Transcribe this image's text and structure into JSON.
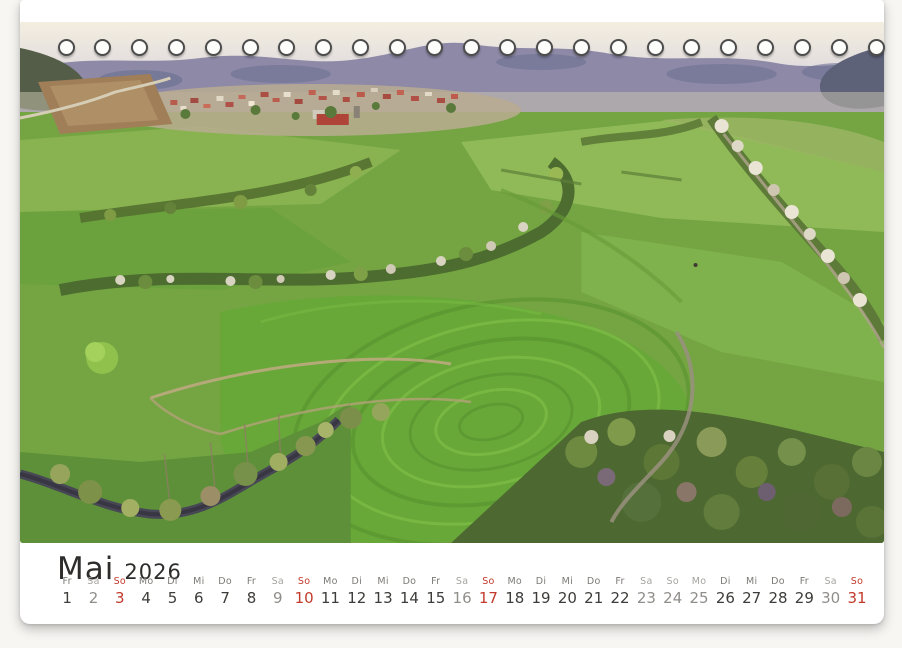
{
  "calendar_page": {
    "month_name": "Mai",
    "year": "2026"
  },
  "binding": {
    "hole_count": 23
  },
  "photo": {
    "subject": "aerial-view-spring-landscape-village-fields-hedgerows"
  },
  "colors": {
    "sunday_red": "#c23a2c",
    "muted_grey": "#8f8e8a",
    "date_black": "#3d3c3a",
    "weekday_grey": "#7b7a76",
    "page_white": "#ffffff"
  },
  "calendar": {
    "days": [
      {
        "dow": "Fr",
        "date": "1",
        "tone": "normal"
      },
      {
        "dow": "Sa",
        "date": "2",
        "tone": "muted"
      },
      {
        "dow": "So",
        "date": "3",
        "tone": "red"
      },
      {
        "dow": "Mo",
        "date": "4",
        "tone": "normal"
      },
      {
        "dow": "Di",
        "date": "5",
        "tone": "normal"
      },
      {
        "dow": "Mi",
        "date": "6",
        "tone": "normal"
      },
      {
        "dow": "Do",
        "date": "7",
        "tone": "normal"
      },
      {
        "dow": "Fr",
        "date": "8",
        "tone": "normal"
      },
      {
        "dow": "Sa",
        "date": "9",
        "tone": "muted"
      },
      {
        "dow": "So",
        "date": "10",
        "tone": "red"
      },
      {
        "dow": "Mo",
        "date": "11",
        "tone": "normal"
      },
      {
        "dow": "Di",
        "date": "12",
        "tone": "normal"
      },
      {
        "dow": "Mi",
        "date": "13",
        "tone": "normal"
      },
      {
        "dow": "Do",
        "date": "14",
        "tone": "normal"
      },
      {
        "dow": "Fr",
        "date": "15",
        "tone": "normal"
      },
      {
        "dow": "Sa",
        "date": "16",
        "tone": "muted"
      },
      {
        "dow": "So",
        "date": "17",
        "tone": "red"
      },
      {
        "dow": "Mo",
        "date": "18",
        "tone": "normal"
      },
      {
        "dow": "Di",
        "date": "19",
        "tone": "normal"
      },
      {
        "dow": "Mi",
        "date": "20",
        "tone": "normal"
      },
      {
        "dow": "Do",
        "date": "21",
        "tone": "normal"
      },
      {
        "dow": "Fr",
        "date": "22",
        "tone": "normal"
      },
      {
        "dow": "Sa",
        "date": "23",
        "tone": "muted"
      },
      {
        "dow": "So",
        "date": "24",
        "tone": "muted"
      },
      {
        "dow": "Mo",
        "date": "25",
        "tone": "muted"
      },
      {
        "dow": "Di",
        "date": "26",
        "tone": "normal"
      },
      {
        "dow": "Mi",
        "date": "27",
        "tone": "normal"
      },
      {
        "dow": "Do",
        "date": "28",
        "tone": "normal"
      },
      {
        "dow": "Fr",
        "date": "29",
        "tone": "normal"
      },
      {
        "dow": "Sa",
        "date": "30",
        "tone": "muted"
      },
      {
        "dow": "So",
        "date": "31",
        "tone": "red"
      }
    ]
  }
}
